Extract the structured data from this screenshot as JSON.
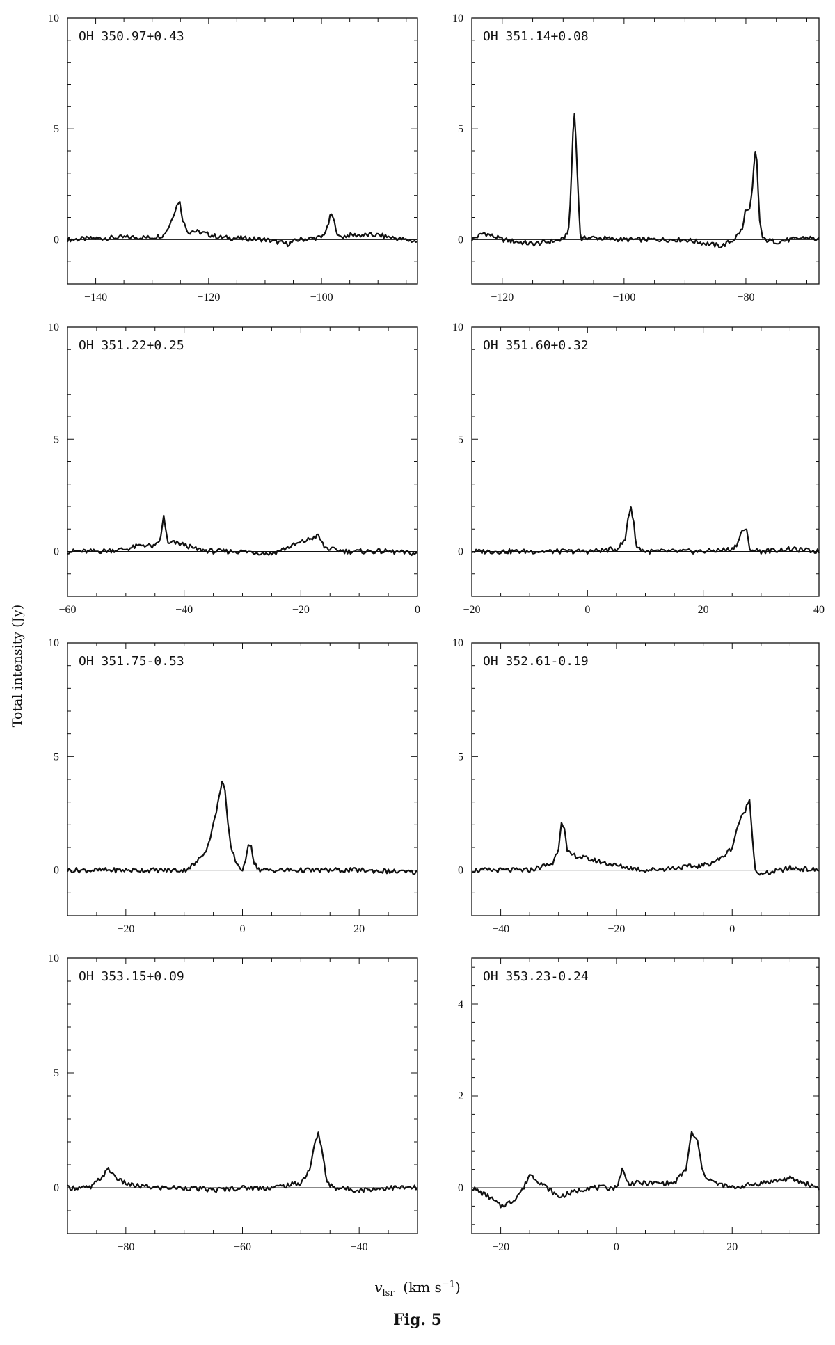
{
  "figure": {
    "ylabel": "Total intensity (Jy)",
    "xlabel_var": "v",
    "xlabel_sub": "lsr",
    "xlabel_unit_pre": "(km s",
    "xlabel_unit_sup": "−1",
    "xlabel_unit_post": ")",
    "caption": "Fig. 5"
  },
  "chart_data": [
    {
      "type": "line",
      "title": "OH 350.97+0.43",
      "xlim": [
        -145,
        -83
      ],
      "ylim": [
        -2,
        10
      ],
      "xticks": [
        -140,
        -120,
        -100
      ],
      "yticks": [
        0,
        5,
        10
      ],
      "xticklabels": [
        "−140",
        "−120",
        "−100"
      ],
      "yticklabels": [
        "0",
        "5",
        "10"
      ],
      "baseline": 0,
      "series": [
        {
          "x": [
            -145,
            -135,
            -130,
            -128,
            -127,
            -126,
            -125.2,
            -124.5,
            -123.5,
            -123,
            -121,
            -118,
            -110,
            -106,
            -104,
            -100,
            -99,
            -98.3,
            -97.5,
            -97,
            -95,
            -90,
            -83
          ],
          "y": [
            0,
            0.1,
            0.1,
            0.2,
            0.6,
            1.3,
            1.8,
            0.8,
            0.3,
            0.4,
            0.3,
            0.1,
            0,
            -0.2,
            0,
            0.1,
            0.5,
            1.2,
            0.6,
            0.1,
            0.2,
            0.2,
            -0.1
          ]
        }
      ]
    },
    {
      "type": "line",
      "title": "OH 351.14+0.08",
      "xlim": [
        -125,
        -68
      ],
      "ylim": [
        -2,
        10
      ],
      "xticks": [
        -120,
        -100,
        -80
      ],
      "yticks": [
        0,
        5,
        10
      ],
      "xticklabels": [
        "−120",
        "−100",
        "−80"
      ],
      "yticklabels": [
        "0",
        "5",
        "10"
      ],
      "baseline": 0,
      "series": [
        {
          "x": [
            -125,
            -123,
            -120,
            -115,
            -110,
            -109,
            -108.5,
            -108.2,
            -107.8,
            -107.3,
            -107,
            -106,
            -100,
            -90,
            -84,
            -82,
            -80.5,
            -80,
            -79.5,
            -79,
            -78.5,
            -78.2,
            -77.8,
            -77.3,
            -77,
            -75,
            -70,
            -68
          ],
          "y": [
            0,
            0.3,
            0,
            -0.2,
            0,
            0.5,
            4,
            6,
            4,
            0.5,
            0,
            0.1,
            0,
            0,
            -0.3,
            0,
            0.5,
            1.5,
            1.2,
            2,
            4,
            3.5,
            1,
            0.1,
            0,
            -0.1,
            0.1,
            0
          ]
        }
      ]
    },
    {
      "type": "line",
      "title": "OH 351.22+0.25",
      "xlim": [
        -60,
        0
      ],
      "ylim": [
        -2,
        10
      ],
      "xticks": [
        -60,
        -40,
        -20,
        0
      ],
      "yticks": [
        0,
        5,
        10
      ],
      "xticklabels": [
        "−60",
        "−40",
        "−20",
        "0"
      ],
      "yticklabels": [
        "0",
        "5",
        "10"
      ],
      "baseline": 0,
      "series": [
        {
          "x": [
            -60,
            -55,
            -50,
            -47,
            -45,
            -44,
            -43.5,
            -43.2,
            -42.8,
            -42,
            -40,
            -38,
            -35,
            -30,
            -25,
            -22,
            -20,
            -18,
            -17,
            -16,
            -15,
            -12,
            -5,
            0
          ],
          "y": [
            0,
            0,
            0.1,
            0.3,
            0.2,
            0.6,
            1.6,
            1.1,
            0.3,
            0.4,
            0.3,
            0.1,
            0,
            0,
            -0.1,
            0.2,
            0.4,
            0.6,
            0.7,
            0.2,
            0.1,
            0,
            0,
            -0.1
          ]
        }
      ]
    },
    {
      "type": "line",
      "title": "OH 351.60+0.32",
      "xlim": [
        -20,
        40
      ],
      "ylim": [
        -2,
        10
      ],
      "xticks": [
        -20,
        0,
        20,
        40
      ],
      "yticks": [
        0,
        5,
        10
      ],
      "xticklabels": [
        "−20",
        "0",
        "20",
        "40"
      ],
      "yticklabels": [
        "0",
        "5",
        "10"
      ],
      "baseline": 0,
      "series": [
        {
          "x": [
            -20,
            -10,
            0,
            5,
            6.5,
            7,
            7.5,
            8,
            8.5,
            10,
            20,
            25,
            26,
            26.8,
            27.5,
            28,
            30,
            35,
            40
          ],
          "y": [
            0,
            0,
            0,
            0.1,
            0.5,
            1.5,
            2,
            1.2,
            0.2,
            0,
            0,
            0.1,
            0.4,
            1,
            0.9,
            0.1,
            0,
            0.1,
            0
          ]
        }
      ]
    },
    {
      "type": "line",
      "title": "OH 351.75-0.53",
      "xlim": [
        -30,
        30
      ],
      "ylim": [
        -2,
        10
      ],
      "xticks": [
        -20,
        0,
        20
      ],
      "yticks": [
        0,
        5,
        10
      ],
      "xticklabels": [
        "−20",
        "0",
        "20"
      ],
      "yticklabels": [
        "0",
        "5",
        "10"
      ],
      "baseline": 0,
      "series": [
        {
          "x": [
            -30,
            -20,
            -10,
            -8,
            -6,
            -5,
            -4,
            -3.5,
            -3,
            -2.5,
            -2,
            -1,
            0,
            0.5,
            1,
            1.5,
            2,
            3,
            5,
            10,
            20,
            30
          ],
          "y": [
            0,
            0,
            0,
            0.3,
            1,
            2,
            3.2,
            4,
            3.5,
            2,
            1,
            0.3,
            0,
            0.3,
            1.2,
            1.1,
            0.3,
            0,
            0,
            0,
            0,
            -0.1
          ]
        }
      ]
    },
    {
      "type": "line",
      "title": "OH 352.61-0.19",
      "xlim": [
        -45,
        15
      ],
      "ylim": [
        -2,
        10
      ],
      "xticks": [
        -40,
        -20,
        0
      ],
      "yticks": [
        0,
        5,
        10
      ],
      "xticklabels": [
        "−40",
        "−20",
        "0"
      ],
      "yticklabels": [
        "0",
        "5",
        "10"
      ],
      "baseline": 0,
      "series": [
        {
          "x": [
            -45,
            -35,
            -31,
            -30,
            -29.5,
            -29,
            -28.5,
            -28,
            -25,
            -20,
            -15,
            -10,
            -5,
            -2,
            0,
            1,
            2,
            3,
            3.5,
            4,
            5,
            10,
            15
          ],
          "y": [
            0,
            0,
            0.3,
            1,
            2.2,
            1.8,
            0.8,
            0.7,
            0.5,
            0.2,
            0,
            0.1,
            0.2,
            0.5,
            1,
            2,
            2.5,
            3.1,
            1.5,
            0,
            -0.2,
            0.1,
            0
          ]
        }
      ]
    },
    {
      "type": "line",
      "title": "OH 353.15+0.09",
      "xlim": [
        -90,
        -30
      ],
      "ylim": [
        -2,
        10
      ],
      "xticks": [
        -80,
        -60,
        -40
      ],
      "yticks": [
        0,
        5,
        10
      ],
      "xticklabels": [
        "−80",
        "−60",
        "−40"
      ],
      "yticklabels": [
        "0",
        "5",
        "10"
      ],
      "baseline": 0,
      "series": [
        {
          "x": [
            -90,
            -86,
            -84,
            -83,
            -81,
            -79,
            -75,
            -70,
            -65,
            -60,
            -55,
            -50,
            -48.5,
            -47.5,
            -47,
            -46.5,
            -45.5,
            -44,
            -40,
            -35,
            -30
          ],
          "y": [
            0,
            0,
            0.5,
            0.8,
            0.3,
            0.1,
            0,
            0,
            -0.1,
            0,
            0,
            0.2,
            0.8,
            2,
            2.4,
            1.8,
            0.2,
            0,
            -0.1,
            0,
            0
          ]
        }
      ]
    },
    {
      "type": "line",
      "title": "OH 353.23-0.24",
      "xlim": [
        -25,
        35
      ],
      "ylim": [
        -1,
        5
      ],
      "xticks": [
        -20,
        0,
        20
      ],
      "yticks": [
        0,
        2,
        4
      ],
      "xticklabels": [
        "−20",
        "0",
        "20"
      ],
      "yticklabels": [
        "0",
        "2",
        "4"
      ],
      "baseline": 0,
      "series": [
        {
          "x": [
            -25,
            -22,
            -20,
            -18,
            -16,
            -15,
            -14,
            -12,
            -10,
            -5,
            0,
            1,
            2,
            5,
            10,
            12,
            13,
            14,
            15,
            17,
            20,
            25,
            30,
            35
          ],
          "y": [
            0,
            -0.2,
            -0.4,
            -0.3,
            0,
            0.3,
            0.2,
            0,
            -0.2,
            0,
            0,
            0.4,
            0.1,
            0.1,
            0.1,
            0.4,
            1.2,
            1,
            0.3,
            0.1,
            0,
            0.1,
            0.2,
            0
          ]
        }
      ]
    }
  ]
}
